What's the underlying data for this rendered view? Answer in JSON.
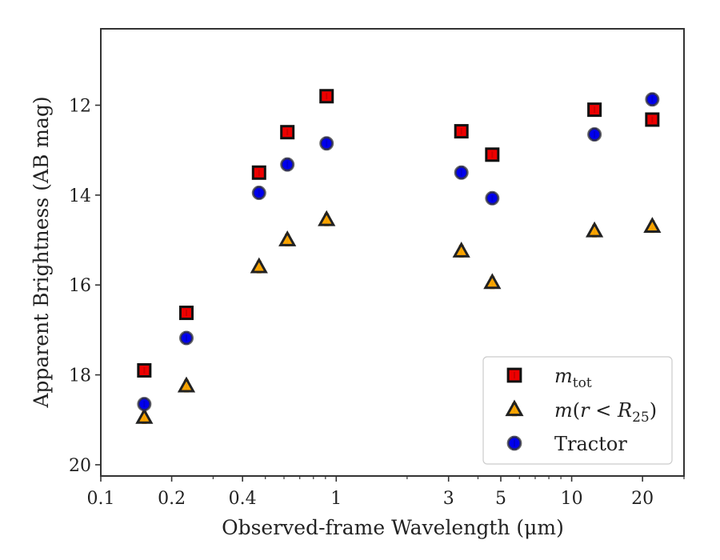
{
  "chart_data": {
    "type": "scatter",
    "xlabel": "Observed-frame Wavelength (μm)",
    "ylabel": "Apparent Brightness (AB mag)",
    "xscale": "log",
    "xlim": [
      0.1,
      30
    ],
    "ylim": [
      20.25,
      10.3
    ],
    "y_inverted": true,
    "grid": false,
    "legend_position": "lower-right",
    "x_ticks": [
      {
        "value": 0.1,
        "label": "0.1"
      },
      {
        "value": 0.2,
        "label": "0.2"
      },
      {
        "value": 0.4,
        "label": "0.4"
      },
      {
        "value": 1,
        "label": "1"
      },
      {
        "value": 3,
        "label": "3"
      },
      {
        "value": 5,
        "label": "5"
      },
      {
        "value": 10,
        "label": "10"
      },
      {
        "value": 20,
        "label": "20"
      }
    ],
    "x_minor_ticks": [
      0.3,
      0.5,
      0.6,
      0.7,
      0.8,
      0.9,
      2,
      4,
      6,
      7,
      8,
      9,
      30
    ],
    "y_ticks": [
      {
        "value": 12,
        "label": "12"
      },
      {
        "value": 14,
        "label": "14"
      },
      {
        "value": 16,
        "label": "16"
      },
      {
        "value": 18,
        "label": "18"
      },
      {
        "value": 20,
        "label": "20"
      }
    ],
    "series": [
      {
        "marker": "square",
        "color": "#ee0000",
        "edge_color": "#111111",
        "errorbar_color": "#cc0000",
        "x": [
          0.153,
          0.231,
          0.47,
          0.62,
          0.91,
          3.4,
          4.6,
          12.5,
          22.0
        ],
        "y": [
          17.9,
          16.62,
          13.5,
          12.6,
          11.8,
          12.58,
          13.1,
          12.1,
          12.32
        ]
      },
      {
        "marker": "triangle",
        "color": "#ffa500",
        "edge_color": "#222222",
        "errorbar_color": "#f0a000",
        "x": [
          0.153,
          0.231,
          0.47,
          0.62,
          0.91,
          3.4,
          4.6,
          12.5,
          22.0
        ],
        "y": [
          18.95,
          18.25,
          15.6,
          15.0,
          14.55,
          15.25,
          15.95,
          14.8,
          14.7
        ]
      },
      {
        "marker": "circle",
        "color": "#0000ee",
        "edge_color": "#333333",
        "errorbar_color": "#0000cc",
        "x": [
          0.153,
          0.231,
          0.47,
          0.62,
          0.91,
          3.4,
          4.6,
          12.5,
          22.0
        ],
        "y": [
          18.65,
          17.18,
          13.95,
          13.32,
          12.85,
          13.5,
          14.07,
          12.65,
          11.87
        ]
      }
    ],
    "legend": [
      {
        "marker": "square",
        "label_base": "m",
        "label_sub": "tot"
      },
      {
        "marker": "triangle",
        "label_base": "m",
        "label_paren_open": "(",
        "label_var": "r",
        "label_lt": " < ",
        "label_R": "R",
        "label_sub": "25",
        "label_paren_close": ")"
      },
      {
        "marker": "circle",
        "label_text": "Tractor"
      }
    ]
  }
}
